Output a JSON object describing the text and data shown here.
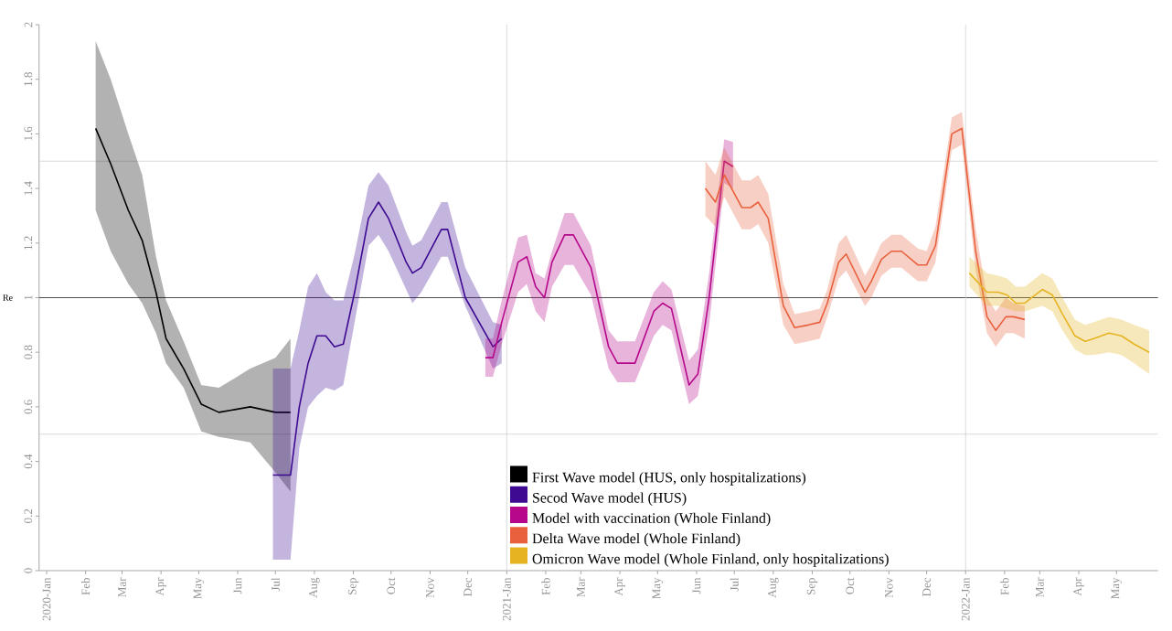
{
  "chart_data": {
    "type": "line",
    "ylabel": "Re",
    "xlim": [
      "2019-12-26",
      "2022-06-03"
    ],
    "ylim": [
      0,
      2
    ],
    "yticks": [
      0,
      0.2,
      0.4,
      0.6,
      0.8,
      1,
      1.2,
      1.4,
      1.6,
      1.8,
      2
    ],
    "xticks": [
      {
        "value": "2020-01",
        "label": "2020-Jan"
      },
      {
        "value": "2020-02",
        "label": "Feb"
      },
      {
        "value": "2020-03",
        "label": "Mar"
      },
      {
        "value": "2020-04",
        "label": "Apr"
      },
      {
        "value": "2020-05",
        "label": "May"
      },
      {
        "value": "2020-06",
        "label": "Jun"
      },
      {
        "value": "2020-07",
        "label": "Jul"
      },
      {
        "value": "2020-08",
        "label": "Aug"
      },
      {
        "value": "2020-09",
        "label": "Sep"
      },
      {
        "value": "2020-10",
        "label": "Oct"
      },
      {
        "value": "2020-11",
        "label": "Nov"
      },
      {
        "value": "2020-12",
        "label": "Dec"
      },
      {
        "value": "2021-01",
        "label": "2021-Jan"
      },
      {
        "value": "2021-02",
        "label": "Feb"
      },
      {
        "value": "2021-03",
        "label": "Mar"
      },
      {
        "value": "2021-04",
        "label": "Apr"
      },
      {
        "value": "2021-05",
        "label": "May"
      },
      {
        "value": "2021-06",
        "label": "Jun"
      },
      {
        "value": "2021-07",
        "label": "Jul"
      },
      {
        "value": "2021-08",
        "label": "Aug"
      },
      {
        "value": "2021-09",
        "label": "Sep"
      },
      {
        "value": "2021-10",
        "label": "Oct"
      },
      {
        "value": "2021-11",
        "label": "Nov"
      },
      {
        "value": "2021-12",
        "label": "Dec"
      },
      {
        "value": "2022-01",
        "label": "2022-Jan"
      },
      {
        "value": "2022-02",
        "label": "Feb"
      },
      {
        "value": "2022-03",
        "label": "Mar"
      },
      {
        "value": "2022-04",
        "label": "Apr"
      },
      {
        "value": "2022-05",
        "label": "May"
      }
    ],
    "legend": "bottom",
    "line_style": "solid",
    "ref_lines": [
      {
        "axis": "y",
        "value": 0.5,
        "color": "#d0d0d0"
      },
      {
        "axis": "y",
        "value": 1,
        "color": "#202020"
      },
      {
        "axis": "y",
        "value": 1.5,
        "color": "#d0d0d0"
      },
      {
        "axis": "x",
        "value": "2021-01-01",
        "color": "#d0d0d0"
      },
      {
        "axis": "x",
        "value": "2022-01-01",
        "color": "#d0d0d0"
      }
    ],
    "series": [
      {
        "name": "First Wave model (HUS, only hospitalizations)",
        "color": "#000000",
        "x": [
          "2020-02-09",
          "2020-02-21",
          "2020-03-06",
          "2020-03-17",
          "2020-03-28",
          "2020-04-05",
          "2020-04-19",
          "2020-05-03",
          "2020-05-17",
          "2020-06-11",
          "2020-07-01",
          "2020-07-13"
        ],
        "values": [
          1.62,
          1.49,
          1.32,
          1.21,
          1.02,
          0.85,
          0.74,
          0.61,
          0.58,
          0.6,
          0.58,
          0.58
        ],
        "upper": [
          1.94,
          1.8,
          1.6,
          1.45,
          1.15,
          0.99,
          0.84,
          0.68,
          0.67,
          0.74,
          0.78,
          0.85
        ],
        "lower": [
          1.32,
          1.17,
          1.05,
          0.98,
          0.87,
          0.76,
          0.67,
          0.51,
          0.49,
          0.47,
          0.36,
          0.29
        ]
      },
      {
        "name": "Secod Wave model (HUS)",
        "color": "#3d0a91",
        "x": [
          "2020-06-29",
          "2020-07-13",
          "2020-07-20",
          "2020-07-27",
          "2020-08-03",
          "2020-08-10",
          "2020-08-17",
          "2020-08-24",
          "2020-09-02",
          "2020-09-13",
          "2020-09-21",
          "2020-09-29",
          "2020-10-13",
          "2020-10-18",
          "2020-10-25",
          "2020-11-10",
          "2020-11-15",
          "2020-11-29",
          "2020-12-21",
          "2020-12-28"
        ],
        "values": [
          0.35,
          0.35,
          0.6,
          0.76,
          0.86,
          0.86,
          0.82,
          0.83,
          1.02,
          1.29,
          1.35,
          1.29,
          1.13,
          1.09,
          1.11,
          1.25,
          1.25,
          1.0,
          0.82,
          0.85
        ],
        "upper": [
          0.74,
          0.74,
          0.88,
          1.04,
          1.09,
          1.02,
          0.99,
          0.99,
          1.16,
          1.41,
          1.46,
          1.41,
          1.24,
          1.19,
          1.21,
          1.35,
          1.35,
          1.11,
          0.91,
          0.9
        ],
        "lower": [
          0.04,
          0.04,
          0.45,
          0.6,
          0.64,
          0.67,
          0.66,
          0.68,
          0.91,
          1.19,
          1.23,
          1.17,
          1.03,
          0.98,
          1.02,
          1.15,
          1.15,
          0.97,
          0.74,
          0.76
        ]
      },
      {
        "name": "Model with vaccination (Whole Finland)",
        "color": "#b5088a",
        "x": [
          "2020-12-15",
          "2020-12-21",
          "2020-12-28",
          "2021-01-10",
          "2021-01-17",
          "2021-01-24",
          "2021-01-31",
          "2021-02-06",
          "2021-02-16",
          "2021-02-23",
          "2021-03-09",
          "2021-03-23",
          "2021-03-30",
          "2021-04-13",
          "2021-04-28",
          "2021-05-05",
          "2021-05-12",
          "2021-05-26",
          "2021-06-02",
          "2021-06-11",
          "2021-06-23",
          "2021-06-30"
        ],
        "values": [
          0.78,
          0.78,
          0.91,
          1.13,
          1.15,
          1.04,
          1.0,
          1.13,
          1.23,
          1.23,
          1.11,
          0.82,
          0.76,
          0.76,
          0.95,
          0.98,
          0.96,
          0.68,
          0.72,
          1.0,
          1.5,
          1.48
        ],
        "upper": [
          0.85,
          0.85,
          0.99,
          1.22,
          1.23,
          1.09,
          1.07,
          1.17,
          1.31,
          1.31,
          1.19,
          0.88,
          0.84,
          0.84,
          1.02,
          1.06,
          1.03,
          0.77,
          0.81,
          1.09,
          1.58,
          1.57
        ],
        "lower": [
          0.71,
          0.71,
          0.83,
          1.02,
          1.05,
          0.95,
          0.91,
          1.04,
          1.12,
          1.12,
          1.01,
          0.74,
          0.69,
          0.69,
          0.86,
          0.9,
          0.88,
          0.61,
          0.64,
          0.9,
          1.42,
          1.4
        ]
      },
      {
        "name": "Delta Wave model (Whole Finland)",
        "color": "#e8603c",
        "x": [
          "2021-06-08",
          "2021-06-16",
          "2021-06-23",
          "2021-07-07",
          "2021-07-14",
          "2021-07-20",
          "2021-07-28",
          "2021-08-09",
          "2021-08-18",
          "2021-08-29",
          "2021-09-07",
          "2021-09-13",
          "2021-09-22",
          "2021-09-28",
          "2021-10-13",
          "2021-10-18",
          "2021-10-26",
          "2021-11-03",
          "2021-11-11",
          "2021-11-24",
          "2021-12-01",
          "2021-12-08",
          "2021-12-21",
          "2021-12-29",
          "2022-01-09",
          "2022-01-18",
          "2022-01-25",
          "2022-02-02",
          "2022-02-08",
          "2022-02-17"
        ],
        "values": [
          1.4,
          1.35,
          1.45,
          1.33,
          1.33,
          1.35,
          1.29,
          0.97,
          0.89,
          0.9,
          0.91,
          0.98,
          1.13,
          1.16,
          1.02,
          1.06,
          1.14,
          1.17,
          1.17,
          1.12,
          1.12,
          1.19,
          1.6,
          1.62,
          1.17,
          0.93,
          0.88,
          0.93,
          0.93,
          0.92
        ],
        "upper": [
          1.5,
          1.45,
          1.55,
          1.43,
          1.43,
          1.45,
          1.38,
          1.05,
          0.94,
          0.95,
          0.96,
          1.03,
          1.2,
          1.23,
          1.08,
          1.12,
          1.2,
          1.23,
          1.23,
          1.18,
          1.17,
          1.26,
          1.66,
          1.68,
          1.25,
          1.0,
          0.95,
          1.0,
          0.98,
          0.97
        ],
        "lower": [
          1.3,
          1.26,
          1.37,
          1.25,
          1.25,
          1.27,
          1.2,
          0.9,
          0.83,
          0.84,
          0.85,
          0.93,
          1.07,
          1.1,
          0.97,
          1.0,
          1.08,
          1.11,
          1.11,
          1.06,
          1.06,
          1.13,
          1.54,
          1.56,
          1.1,
          0.87,
          0.82,
          0.87,
          0.87,
          0.85
        ]
      },
      {
        "name": "Omicron Wave model (Whole Finland, only hospitalizations)",
        "color": "#e6b422",
        "x": [
          "2022-01-04",
          "2022-01-18",
          "2022-01-27",
          "2022-02-03",
          "2022-02-10",
          "2022-02-17",
          "2022-03-03",
          "2022-03-11",
          "2022-03-19",
          "2022-03-29",
          "2022-04-06",
          "2022-04-13",
          "2022-04-25",
          "2022-05-05",
          "2022-05-15",
          "2022-05-27"
        ],
        "values": [
          1.09,
          1.02,
          1.02,
          1.01,
          0.98,
          0.98,
          1.03,
          1.01,
          0.94,
          0.86,
          0.84,
          0.85,
          0.87,
          0.86,
          0.83,
          0.8
        ],
        "upper": [
          1.15,
          1.09,
          1.08,
          1.07,
          1.04,
          1.04,
          1.09,
          1.07,
          1.0,
          0.92,
          0.9,
          0.91,
          0.93,
          0.92,
          0.9,
          0.88
        ],
        "lower": [
          1.04,
          0.97,
          0.97,
          0.96,
          0.95,
          0.95,
          0.97,
          0.95,
          0.88,
          0.81,
          0.79,
          0.79,
          0.8,
          0.79,
          0.76,
          0.72
        ]
      }
    ]
  }
}
